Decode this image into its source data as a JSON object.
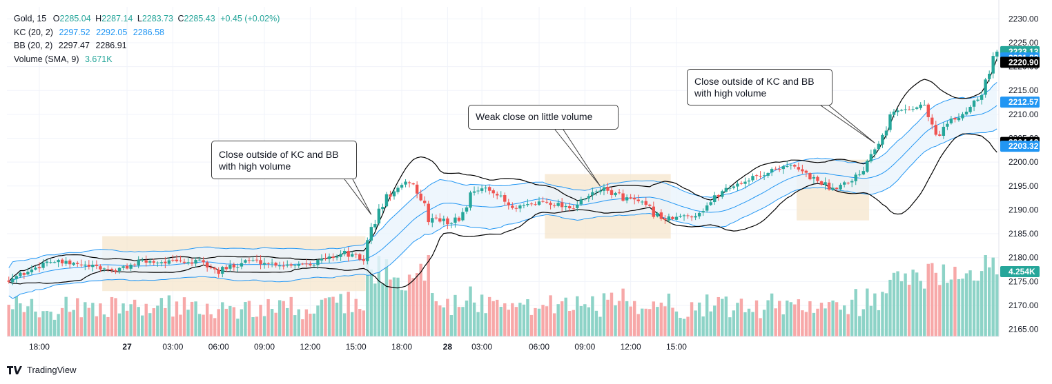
{
  "legend": {
    "symbol": "Gold, 15",
    "ohlc": {
      "o_label": "O",
      "o": "2285.04",
      "h_label": "H",
      "h": "2287.14",
      "l_label": "L",
      "l": "2283.73",
      "c_label": "C",
      "c": "2285.43",
      "change": "+0.45 (+0.02%)"
    },
    "kc": {
      "label": "KC (20, 2)",
      "values": [
        "2297.52",
        "2292.05",
        "2286.58"
      ]
    },
    "bb": {
      "label": "BB (20, 2)",
      "values": [
        "2297.47",
        "2286.91"
      ]
    },
    "volume": {
      "label": "Volume (SMA, 9)",
      "value": "3.671K"
    }
  },
  "annotations": [
    "Close outside of KC and BB\nwith high volume",
    "Weak close on little volume",
    "Close outside of KC and BB\nwith high volume"
  ],
  "branding": "TradingView",
  "colors": {
    "up": "#26a69a",
    "down": "#ef5350",
    "vol_up": "#8dd3c7",
    "vol_down": "#f7a8a8",
    "bb_line": "#000000",
    "kc_line": "#2196f3",
    "kc_fill": "#eaf4fd",
    "highlight": "#f6e6cc",
    "axis_text": "#131722"
  },
  "chart_data": {
    "type": "candlestick",
    "interval": "15",
    "y_axis_ticks": [
      "2230.00",
      "2225.00",
      "2220.00",
      "2215.00",
      "2210.00",
      "2205.00",
      "2200.00",
      "2195.00",
      "2190.00",
      "2185.00",
      "2180.00",
      "2175.00",
      "2170.00",
      "2165.00"
    ],
    "y_range": [
      2163.5,
      2232.5
    ],
    "x_axis_labels": [
      "18:00",
      "27",
      "03:00",
      "06:00",
      "09:00",
      "12:00",
      "15:00",
      "18:00",
      "28",
      "03:00",
      "06:00",
      "09:00",
      "12:00",
      "15:00"
    ],
    "price_labels": [
      {
        "value": "2223.13",
        "color": "#26a69a"
      },
      {
        "value": "2221.82",
        "color": "#2196f3"
      },
      {
        "value": "2220.90",
        "color": "#000000"
      },
      {
        "value": "2212.57",
        "color": "#2196f3"
      },
      {
        "value": "2204.12",
        "color": "#000000"
      },
      {
        "value": "2203.32",
        "color": "#2196f3"
      },
      {
        "value": "4.254K",
        "color": "#26a69a"
      }
    ],
    "keyframes": [
      {
        "i": 0,
        "p": 2175.5
      },
      {
        "i": 5,
        "p": 2177.0
      },
      {
        "i": 10,
        "p": 2179.3
      },
      {
        "i": 18,
        "p": 2178.5
      },
      {
        "i": 28,
        "p": 2177.3
      },
      {
        "i": 35,
        "p": 2179.2
      },
      {
        "i": 50,
        "p": 2179.0
      },
      {
        "i": 55,
        "p": 2177.0
      },
      {
        "i": 62,
        "p": 2179.5
      },
      {
        "i": 72,
        "p": 2178.5
      },
      {
        "i": 80,
        "p": 2179.0
      },
      {
        "i": 88,
        "p": 2181.0
      },
      {
        "i": 93,
        "p": 2179.5
      },
      {
        "i": 95,
        "p": 2186.0
      },
      {
        "i": 99,
        "p": 2192.5
      },
      {
        "i": 105,
        "p": 2196.0
      },
      {
        "i": 107,
        "p": 2194.0
      },
      {
        "i": 110,
        "p": 2188.5
      },
      {
        "i": 115,
        "p": 2187.5
      },
      {
        "i": 118,
        "p": 2188.0
      },
      {
        "i": 122,
        "p": 2194.5
      },
      {
        "i": 127,
        "p": 2194.0
      },
      {
        "i": 132,
        "p": 2190.0
      },
      {
        "i": 140,
        "p": 2191.8
      },
      {
        "i": 148,
        "p": 2190.5
      },
      {
        "i": 155,
        "p": 2194.5
      },
      {
        "i": 160,
        "p": 2193.0
      },
      {
        "i": 165,
        "p": 2191.5
      },
      {
        "i": 172,
        "p": 2188.0
      },
      {
        "i": 180,
        "p": 2189.0
      },
      {
        "i": 188,
        "p": 2194.5
      },
      {
        "i": 196,
        "p": 2197.0
      },
      {
        "i": 204,
        "p": 2199.5
      },
      {
        "i": 210,
        "p": 2197.0
      },
      {
        "i": 216,
        "p": 2194.5
      },
      {
        "i": 223,
        "p": 2197.5
      },
      {
        "i": 227,
        "p": 2204.0
      },
      {
        "i": 232,
        "p": 2210.5
      },
      {
        "i": 240,
        "p": 2212.0
      },
      {
        "i": 243,
        "p": 2205.0
      },
      {
        "i": 246,
        "p": 2208.0
      },
      {
        "i": 250,
        "p": 2210.0
      },
      {
        "i": 255,
        "p": 2215.0
      },
      {
        "i": 259,
        "p": 2223.13
      }
    ],
    "highlight_zones": [
      {
        "from_index": 25,
        "to_index": 93,
        "y_top": 2184.5,
        "y_bottom": 2173.0
      },
      {
        "from_index": 141,
        "to_index": 173,
        "y_top": 2197.5,
        "y_bottom": 2184.0
      },
      {
        "from_index": 207,
        "to_index": 225,
        "y_top": 2200.5,
        "y_bottom": 2187.8
      }
    ],
    "annotation_targets": [
      {
        "index": 95,
        "price": 2189.0
      },
      {
        "index": 155,
        "price": 2195.0
      },
      {
        "index": 227,
        "price": 2204.0
      }
    ],
    "indicators": [
      "KC (20, 2)",
      "BB (20, 2)",
      "Volume (SMA, 9)"
    ],
    "grid": true
  }
}
